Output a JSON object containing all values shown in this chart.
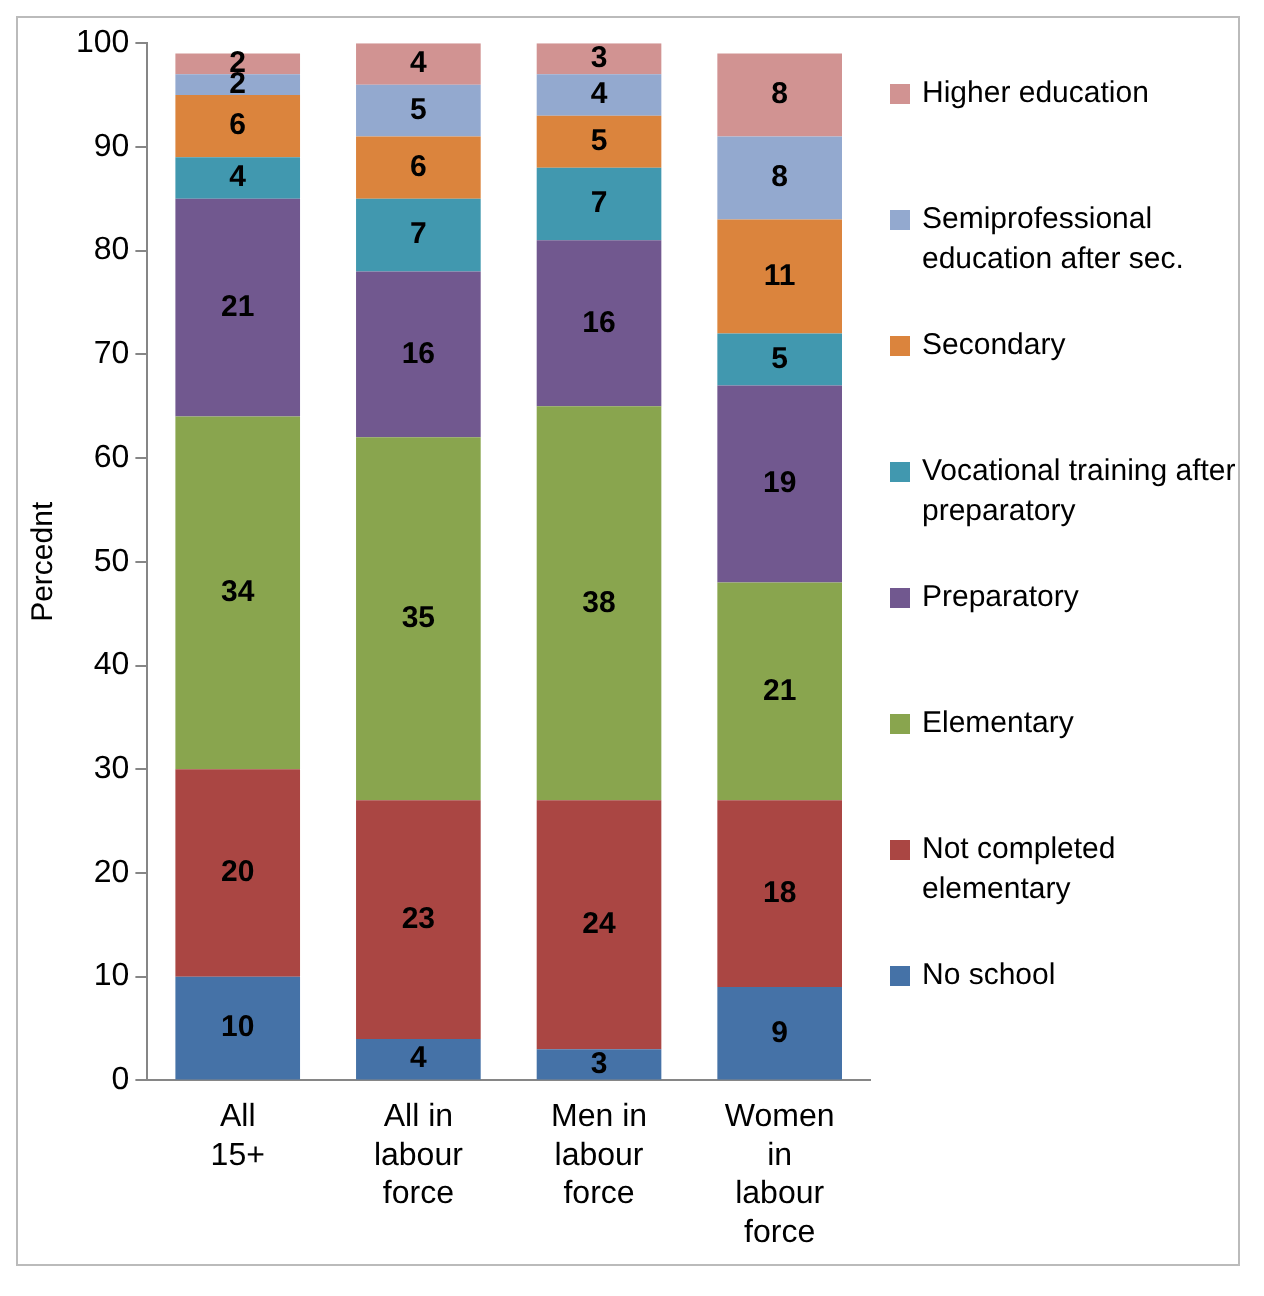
{
  "chart_data": {
    "type": "bar",
    "stacked": true,
    "ylabel": "Percednt",
    "categories": [
      "All 15+",
      "All in labour force",
      "Men in labour force",
      "Women in labour force"
    ],
    "series": [
      {
        "name": "No school",
        "color": "#4572a7",
        "values": [
          10,
          4,
          3,
          9
        ]
      },
      {
        "name": "Not completed elementary",
        "color": "#aa4643",
        "values": [
          20,
          23,
          24,
          18
        ]
      },
      {
        "name": "Elementary",
        "color": "#89a54e",
        "values": [
          34,
          35,
          38,
          21
        ]
      },
      {
        "name": "Preparatory",
        "color": "#71588f",
        "values": [
          21,
          16,
          16,
          19
        ]
      },
      {
        "name": "Vocational training after preparatory",
        "color": "#4198af",
        "values": [
          4,
          7,
          7,
          5
        ]
      },
      {
        "name": "Secondary",
        "color": "#db843d",
        "values": [
          6,
          6,
          5,
          11
        ]
      },
      {
        "name": "Semiprofessional education after sec.",
        "color": "#93a9cf",
        "values": [
          2,
          5,
          4,
          8
        ]
      },
      {
        "name": "Higher education",
        "color": "#d19392",
        "values": [
          2,
          4,
          3,
          8
        ]
      }
    ],
    "ylim": [
      0,
      100
    ],
    "yticks": [
      0,
      10,
      20,
      30,
      40,
      50,
      60,
      70,
      80,
      90,
      100
    ],
    "grid": false,
    "legend": "right",
    "data_labels": true
  }
}
